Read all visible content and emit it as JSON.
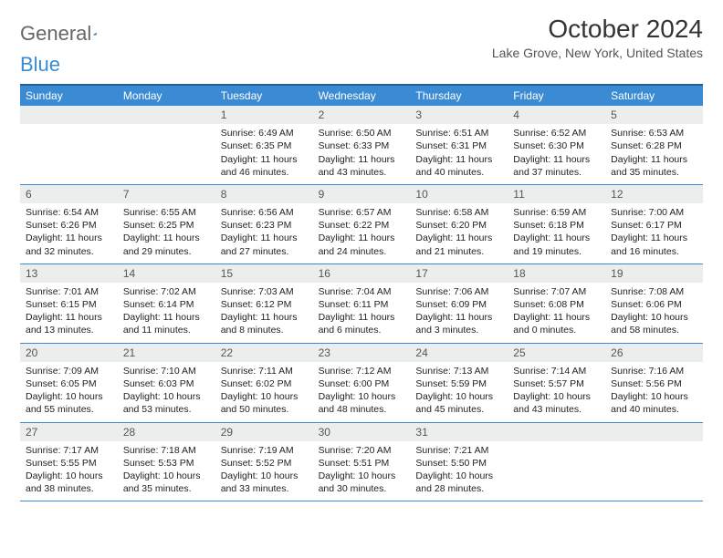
{
  "colors": {
    "header_bg": "#3b8bd4",
    "border_top": "#215f95",
    "week_border": "#3b8bd4",
    "daynum_bg": "#eceded",
    "text": "#222222",
    "logo_gray": "#666666",
    "logo_blue": "#3b8bd4"
  },
  "logo": {
    "word1": "General",
    "word2": "Blue"
  },
  "title": "October 2024",
  "location": "Lake Grove, New York, United States",
  "day_headers": [
    "Sunday",
    "Monday",
    "Tuesday",
    "Wednesday",
    "Thursday",
    "Friday",
    "Saturday"
  ],
  "weeks": [
    [
      {
        "n": "",
        "sr": "",
        "ss": "",
        "dl": ""
      },
      {
        "n": "",
        "sr": "",
        "ss": "",
        "dl": ""
      },
      {
        "n": "1",
        "sr": "Sunrise: 6:49 AM",
        "ss": "Sunset: 6:35 PM",
        "dl": "Daylight: 11 hours and 46 minutes."
      },
      {
        "n": "2",
        "sr": "Sunrise: 6:50 AM",
        "ss": "Sunset: 6:33 PM",
        "dl": "Daylight: 11 hours and 43 minutes."
      },
      {
        "n": "3",
        "sr": "Sunrise: 6:51 AM",
        "ss": "Sunset: 6:31 PM",
        "dl": "Daylight: 11 hours and 40 minutes."
      },
      {
        "n": "4",
        "sr": "Sunrise: 6:52 AM",
        "ss": "Sunset: 6:30 PM",
        "dl": "Daylight: 11 hours and 37 minutes."
      },
      {
        "n": "5",
        "sr": "Sunrise: 6:53 AM",
        "ss": "Sunset: 6:28 PM",
        "dl": "Daylight: 11 hours and 35 minutes."
      }
    ],
    [
      {
        "n": "6",
        "sr": "Sunrise: 6:54 AM",
        "ss": "Sunset: 6:26 PM",
        "dl": "Daylight: 11 hours and 32 minutes."
      },
      {
        "n": "7",
        "sr": "Sunrise: 6:55 AM",
        "ss": "Sunset: 6:25 PM",
        "dl": "Daylight: 11 hours and 29 minutes."
      },
      {
        "n": "8",
        "sr": "Sunrise: 6:56 AM",
        "ss": "Sunset: 6:23 PM",
        "dl": "Daylight: 11 hours and 27 minutes."
      },
      {
        "n": "9",
        "sr": "Sunrise: 6:57 AM",
        "ss": "Sunset: 6:22 PM",
        "dl": "Daylight: 11 hours and 24 minutes."
      },
      {
        "n": "10",
        "sr": "Sunrise: 6:58 AM",
        "ss": "Sunset: 6:20 PM",
        "dl": "Daylight: 11 hours and 21 minutes."
      },
      {
        "n": "11",
        "sr": "Sunrise: 6:59 AM",
        "ss": "Sunset: 6:18 PM",
        "dl": "Daylight: 11 hours and 19 minutes."
      },
      {
        "n": "12",
        "sr": "Sunrise: 7:00 AM",
        "ss": "Sunset: 6:17 PM",
        "dl": "Daylight: 11 hours and 16 minutes."
      }
    ],
    [
      {
        "n": "13",
        "sr": "Sunrise: 7:01 AM",
        "ss": "Sunset: 6:15 PM",
        "dl": "Daylight: 11 hours and 13 minutes."
      },
      {
        "n": "14",
        "sr": "Sunrise: 7:02 AM",
        "ss": "Sunset: 6:14 PM",
        "dl": "Daylight: 11 hours and 11 minutes."
      },
      {
        "n": "15",
        "sr": "Sunrise: 7:03 AM",
        "ss": "Sunset: 6:12 PM",
        "dl": "Daylight: 11 hours and 8 minutes."
      },
      {
        "n": "16",
        "sr": "Sunrise: 7:04 AM",
        "ss": "Sunset: 6:11 PM",
        "dl": "Daylight: 11 hours and 6 minutes."
      },
      {
        "n": "17",
        "sr": "Sunrise: 7:06 AM",
        "ss": "Sunset: 6:09 PM",
        "dl": "Daylight: 11 hours and 3 minutes."
      },
      {
        "n": "18",
        "sr": "Sunrise: 7:07 AM",
        "ss": "Sunset: 6:08 PM",
        "dl": "Daylight: 11 hours and 0 minutes."
      },
      {
        "n": "19",
        "sr": "Sunrise: 7:08 AM",
        "ss": "Sunset: 6:06 PM",
        "dl": "Daylight: 10 hours and 58 minutes."
      }
    ],
    [
      {
        "n": "20",
        "sr": "Sunrise: 7:09 AM",
        "ss": "Sunset: 6:05 PM",
        "dl": "Daylight: 10 hours and 55 minutes."
      },
      {
        "n": "21",
        "sr": "Sunrise: 7:10 AM",
        "ss": "Sunset: 6:03 PM",
        "dl": "Daylight: 10 hours and 53 minutes."
      },
      {
        "n": "22",
        "sr": "Sunrise: 7:11 AM",
        "ss": "Sunset: 6:02 PM",
        "dl": "Daylight: 10 hours and 50 minutes."
      },
      {
        "n": "23",
        "sr": "Sunrise: 7:12 AM",
        "ss": "Sunset: 6:00 PM",
        "dl": "Daylight: 10 hours and 48 minutes."
      },
      {
        "n": "24",
        "sr": "Sunrise: 7:13 AM",
        "ss": "Sunset: 5:59 PM",
        "dl": "Daylight: 10 hours and 45 minutes."
      },
      {
        "n": "25",
        "sr": "Sunrise: 7:14 AM",
        "ss": "Sunset: 5:57 PM",
        "dl": "Daylight: 10 hours and 43 minutes."
      },
      {
        "n": "26",
        "sr": "Sunrise: 7:16 AM",
        "ss": "Sunset: 5:56 PM",
        "dl": "Daylight: 10 hours and 40 minutes."
      }
    ],
    [
      {
        "n": "27",
        "sr": "Sunrise: 7:17 AM",
        "ss": "Sunset: 5:55 PM",
        "dl": "Daylight: 10 hours and 38 minutes."
      },
      {
        "n": "28",
        "sr": "Sunrise: 7:18 AM",
        "ss": "Sunset: 5:53 PM",
        "dl": "Daylight: 10 hours and 35 minutes."
      },
      {
        "n": "29",
        "sr": "Sunrise: 7:19 AM",
        "ss": "Sunset: 5:52 PM",
        "dl": "Daylight: 10 hours and 33 minutes."
      },
      {
        "n": "30",
        "sr": "Sunrise: 7:20 AM",
        "ss": "Sunset: 5:51 PM",
        "dl": "Daylight: 10 hours and 30 minutes."
      },
      {
        "n": "31",
        "sr": "Sunrise: 7:21 AM",
        "ss": "Sunset: 5:50 PM",
        "dl": "Daylight: 10 hours and 28 minutes."
      },
      {
        "n": "",
        "sr": "",
        "ss": "",
        "dl": ""
      },
      {
        "n": "",
        "sr": "",
        "ss": "",
        "dl": ""
      }
    ]
  ]
}
